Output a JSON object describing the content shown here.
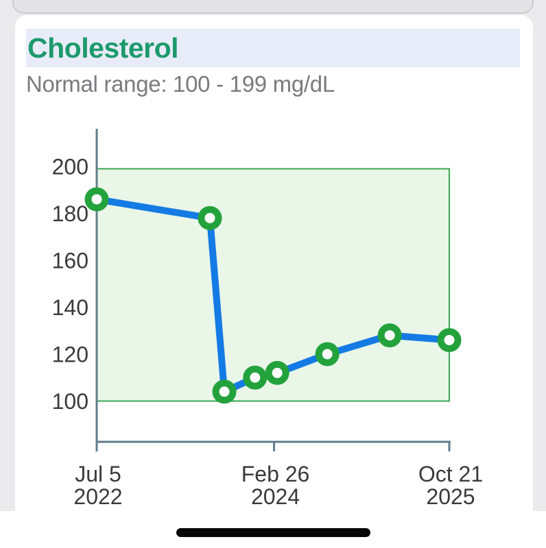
{
  "page": {
    "background_gray": "#ebebed"
  },
  "card": {
    "title": "Cholesterol",
    "subtitle": "Normal range: 100 - 199 mg/dL",
    "title_color": "#1d9a6c",
    "title_highlight_color": "#e8ecf8",
    "subtitle_color": "#7a7a7f",
    "background": "#ffffff"
  },
  "chart_data": {
    "type": "line",
    "title": "Cholesterol",
    "unit": "mg/dL",
    "normal_range": {
      "min": 100,
      "max": 199,
      "label": "Normal range: 100 - 199 mg/dL"
    },
    "y_ticks": [
      200,
      180,
      160,
      140,
      120,
      100
    ],
    "ylim": [
      83,
      215
    ],
    "grid": false,
    "legend": false,
    "x_ticks": [
      {
        "fraction": 0.0,
        "line1": "Jul 5",
        "line2": "2022"
      },
      {
        "fraction": 0.503,
        "line1": "Feb 26",
        "line2": "2024"
      },
      {
        "fraction": 1.0,
        "line1": "Oct 21",
        "line2": "2025"
      }
    ],
    "points": [
      {
        "x_fraction": 0.0,
        "value": 186
      },
      {
        "x_fraction": 0.321,
        "value": 178
      },
      {
        "x_fraction": 0.362,
        "value": 104
      },
      {
        "x_fraction": 0.449,
        "value": 110
      },
      {
        "x_fraction": 0.512,
        "value": 112
      },
      {
        "x_fraction": 0.654,
        "value": 120
      },
      {
        "x_fraction": 0.831,
        "value": 128
      },
      {
        "x_fraction": 1.0,
        "value": 126
      }
    ],
    "colors": {
      "line": "#147be4",
      "marker": "#23a23c",
      "marker_center": "#ffffff",
      "band_fill": "#e9f6e8",
      "band_border": "#3aa657",
      "axis": "#5f7d8c",
      "tick_label": "#3a3a3c"
    }
  }
}
